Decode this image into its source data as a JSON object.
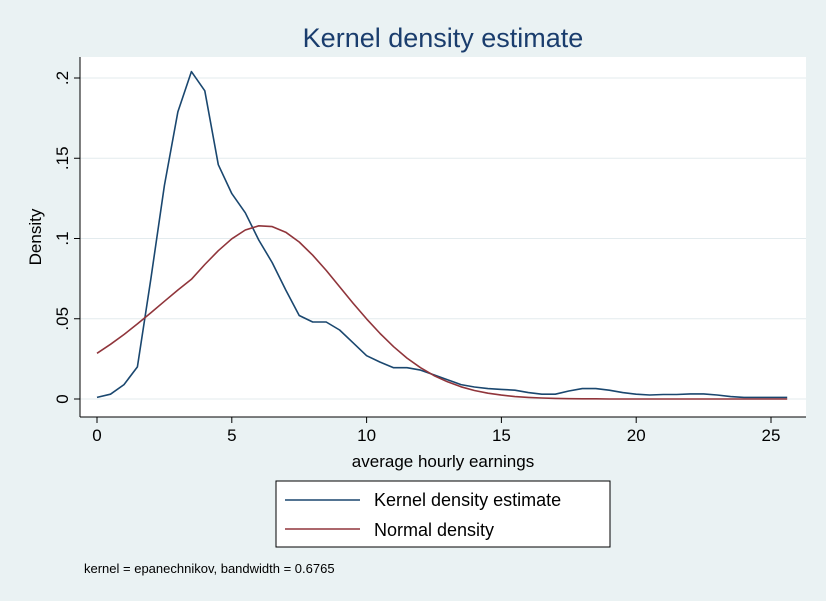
{
  "chart_data": {
    "type": "line",
    "title": "Kernel density estimate",
    "xlabel": "average hourly earnings",
    "ylabel": "Density",
    "xlim": [
      -0.6,
      25.9
    ],
    "ylim": [
      0,
      0.2
    ],
    "x_ticks": [
      0,
      5,
      10,
      15,
      20,
      25
    ],
    "x_tick_labels": [
      "0",
      "5",
      "10",
      "15",
      "20",
      "25"
    ],
    "y_ticks": [
      0,
      0.05,
      0.1,
      0.15,
      0.2
    ],
    "y_tick_labels": [
      "0",
      ".05",
      ".1",
      ".15",
      ".2"
    ],
    "grid": true,
    "legend_position": "bottom",
    "note": "kernel = epanechnikov, bandwidth = 0.6765",
    "series": [
      {
        "name": "Kernel density estimate",
        "color": "#1a476f",
        "x": [
          0,
          0.5,
          1,
          1.5,
          2,
          2.5,
          3,
          3.5,
          4,
          4.5,
          5,
          5.5,
          6,
          6.5,
          7,
          7.5,
          8,
          8.5,
          9,
          9.5,
          10,
          10.5,
          11,
          11.5,
          12,
          12.5,
          13,
          13.5,
          14,
          14.5,
          15,
          15.5,
          16,
          16.5,
          17,
          17.5,
          18,
          18.5,
          19,
          19.5,
          20,
          20.5,
          21,
          21.5,
          22,
          22.5,
          23,
          23.5,
          24,
          24.5,
          25,
          25.6
        ],
        "y": [
          0.001,
          0.003,
          0.009,
          0.02,
          0.075,
          0.133,
          0.179,
          0.204,
          0.192,
          0.146,
          0.128,
          0.116,
          0.099,
          0.085,
          0.068,
          0.052,
          0.048,
          0.048,
          0.043,
          0.035,
          0.027,
          0.023,
          0.0195,
          0.0195,
          0.018,
          0.015,
          0.012,
          0.009,
          0.0075,
          0.0065,
          0.006,
          0.0055,
          0.004,
          0.003,
          0.003,
          0.005,
          0.0065,
          0.0065,
          0.0055,
          0.004,
          0.003,
          0.0025,
          0.0028,
          0.0028,
          0.0032,
          0.0032,
          0.0025,
          0.0015,
          0.001,
          0.001,
          0.001,
          0.001
        ]
      },
      {
        "name": "Normal density",
        "color": "#90353b",
        "x": [
          0,
          0.5,
          1,
          1.5,
          2,
          2.5,
          3,
          3.5,
          4,
          4.5,
          5,
          5.5,
          6,
          6.5,
          7,
          7.5,
          8,
          8.5,
          9,
          9.5,
          10,
          10.5,
          11,
          11.5,
          12,
          12.5,
          13,
          13.5,
          14,
          14.5,
          15,
          15.5,
          16,
          16.5,
          17,
          17.5,
          18,
          18.5,
          19,
          19.5,
          20,
          20.5,
          21,
          21.5,
          22,
          22.5,
          23,
          23.5,
          24,
          24.5,
          25,
          25.6
        ],
        "y": [
          0.0285,
          0.0341,
          0.0402,
          0.0468,
          0.0538,
          0.0609,
          0.0679,
          0.0746,
          0.0838,
          0.0924,
          0.0998,
          0.1053,
          0.1079,
          0.1074,
          0.1039,
          0.0978,
          0.0896,
          0.0801,
          0.0699,
          0.0597,
          0.0499,
          0.0408,
          0.0326,
          0.0255,
          0.0195,
          0.0146,
          0.0107,
          0.0076,
          0.0053,
          0.0036,
          0.0024,
          0.0015,
          0.001,
          0.0006,
          0.0004,
          0.0002,
          0.0001,
          0.0001,
          0,
          0,
          0,
          0,
          0,
          0,
          0,
          0,
          0,
          0,
          0,
          0,
          0,
          0
        ]
      }
    ]
  }
}
